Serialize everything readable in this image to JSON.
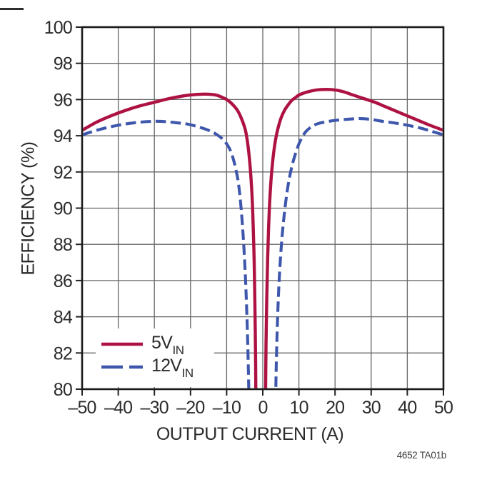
{
  "figure": {
    "y_axis_label": "EFFICIENCY (%)",
    "x_axis_label": "OUTPUT CURRENT (A)",
    "caption": "4652 TA01b",
    "legend": [
      {
        "label": "5V",
        "subscript": "IN"
      },
      {
        "label": "12V",
        "subscript": "IN"
      }
    ]
  },
  "chart_data": {
    "type": "line",
    "title": "",
    "xlabel": "OUTPUT CURRENT (A)",
    "ylabel": "EFFICIENCY (%)",
    "xlim": [
      -50,
      50
    ],
    "ylim": [
      80,
      100
    ],
    "grid": true,
    "legend_position": "lower-left-inside",
    "x_ticks": [
      -50,
      -40,
      -30,
      -20,
      -10,
      0,
      10,
      20,
      30,
      40,
      50
    ],
    "x_tick_labels": [
      "–50",
      "–40",
      "–30",
      "–20",
      "–10",
      "0",
      "10",
      "20",
      "30",
      "40",
      "50"
    ],
    "y_ticks": [
      80,
      82,
      84,
      86,
      88,
      90,
      92,
      94,
      96,
      98,
      100
    ],
    "y_tick_labels": [
      "80",
      "82",
      "84",
      "86",
      "88",
      "90",
      "92",
      "94",
      "96",
      "98",
      "100"
    ],
    "colors": {
      "grid": "#666666",
      "frame": "#1a1a1a",
      "tick": "#222222",
      "text": "#2b2b2b",
      "series_5vin": "#AD1243",
      "series_12vin": "#3E57AC"
    },
    "series": [
      {
        "name": "5VIN",
        "display": "5V IN",
        "color": "#AD1243",
        "style": "solid",
        "segments": [
          [
            [
              -50,
              94.3
            ],
            [
              -46,
              94.75
            ],
            [
              -42,
              95.1
            ],
            [
              -38,
              95.4
            ],
            [
              -34,
              95.65
            ],
            [
              -30,
              95.85
            ],
            [
              -26,
              96.05
            ],
            [
              -22,
              96.2
            ],
            [
              -19,
              96.27
            ],
            [
              -16,
              96.3
            ],
            [
              -13,
              96.25
            ],
            [
              -11,
              96.1
            ],
            [
              -10,
              96.0
            ],
            [
              -9,
              95.85
            ],
            [
              -8,
              95.65
            ],
            [
              -7,
              95.4
            ],
            [
              -6,
              95.0
            ],
            [
              -5,
              94.45
            ],
            [
              -4.5,
              94.0
            ],
            [
              -4,
              93.3
            ],
            [
              -3.5,
              92.3
            ],
            [
              -3,
              90.8
            ],
            [
              -2.7,
              89.3
            ],
            [
              -2.4,
              87.2
            ],
            [
              -2.2,
              85.0
            ],
            [
              -2.0,
              81.8
            ],
            [
              -1.9,
              79.3
            ]
          ],
          [
            [
              0.75,
              79.3
            ],
            [
              0.9,
              82.5
            ],
            [
              1.1,
              85.0
            ],
            [
              1.35,
              87.2
            ],
            [
              1.6,
              88.9
            ],
            [
              1.9,
              90.3
            ],
            [
              2.3,
              91.6
            ],
            [
              2.7,
              92.5
            ],
            [
              3.1,
              93.2
            ],
            [
              3.6,
              93.85
            ],
            [
              4.2,
              94.4
            ],
            [
              5,
              94.95
            ],
            [
              6,
              95.4
            ],
            [
              7,
              95.7
            ],
            [
              8,
              95.95
            ],
            [
              9,
              96.1
            ],
            [
              10,
              96.25
            ],
            [
              12,
              96.4
            ],
            [
              14,
              96.5
            ],
            [
              16,
              96.55
            ],
            [
              19,
              96.55
            ],
            [
              22,
              96.45
            ],
            [
              25,
              96.25
            ],
            [
              28,
              96.05
            ],
            [
              31,
              95.85
            ],
            [
              34,
              95.6
            ],
            [
              37,
              95.35
            ],
            [
              40,
              95.1
            ],
            [
              43,
              94.85
            ],
            [
              46,
              94.6
            ],
            [
              50,
              94.3
            ]
          ]
        ]
      },
      {
        "name": "12VIN",
        "display": "12V IN",
        "color": "#3E57AC",
        "style": "dashed",
        "segments": [
          [
            [
              -50,
              94.05
            ],
            [
              -46,
              94.3
            ],
            [
              -42,
              94.5
            ],
            [
              -38,
              94.65
            ],
            [
              -34,
              94.75
            ],
            [
              -30,
              94.8
            ],
            [
              -27,
              94.78
            ],
            [
              -24,
              94.72
            ],
            [
              -21,
              94.65
            ],
            [
              -18,
              94.5
            ],
            [
              -15,
              94.3
            ],
            [
              -13,
              94.1
            ],
            [
              -11,
              93.8
            ],
            [
              -10,
              93.55
            ],
            [
              -9,
              93.2
            ],
            [
              -8,
              92.6
            ],
            [
              -7,
              91.7
            ],
            [
              -6.5,
              91.0
            ],
            [
              -6,
              90.0
            ],
            [
              -5.5,
              88.7
            ],
            [
              -5,
              87.0
            ],
            [
              -4.6,
              85.2
            ],
            [
              -4.2,
              82.8
            ],
            [
              -3.9,
              80.2
            ],
            [
              -3.85,
              79.3
            ]
          ],
          [
            [
              3.55,
              79.3
            ],
            [
              3.7,
              81.0
            ],
            [
              3.95,
              83.0
            ],
            [
              4.3,
              85.0
            ],
            [
              4.7,
              86.6
            ],
            [
              5.2,
              88.1
            ],
            [
              5.7,
              89.2
            ],
            [
              6.2,
              90.1
            ],
            [
              6.8,
              91.0
            ],
            [
              7.5,
              91.8
            ],
            [
              8.3,
              92.5
            ],
            [
              9.2,
              93.1
            ],
            [
              10,
              93.55
            ],
            [
              11,
              93.95
            ],
            [
              12,
              94.25
            ],
            [
              13.5,
              94.5
            ],
            [
              15,
              94.65
            ],
            [
              17,
              94.75
            ],
            [
              19,
              94.82
            ],
            [
              21,
              94.87
            ],
            [
              24,
              94.92
            ],
            [
              27,
              94.95
            ],
            [
              30,
              94.9
            ],
            [
              33,
              94.8
            ],
            [
              36,
              94.72
            ],
            [
              39,
              94.62
            ],
            [
              42,
              94.5
            ],
            [
              45,
              94.35
            ],
            [
              47.5,
              94.2
            ],
            [
              50,
              94.05
            ]
          ]
        ]
      }
    ]
  }
}
